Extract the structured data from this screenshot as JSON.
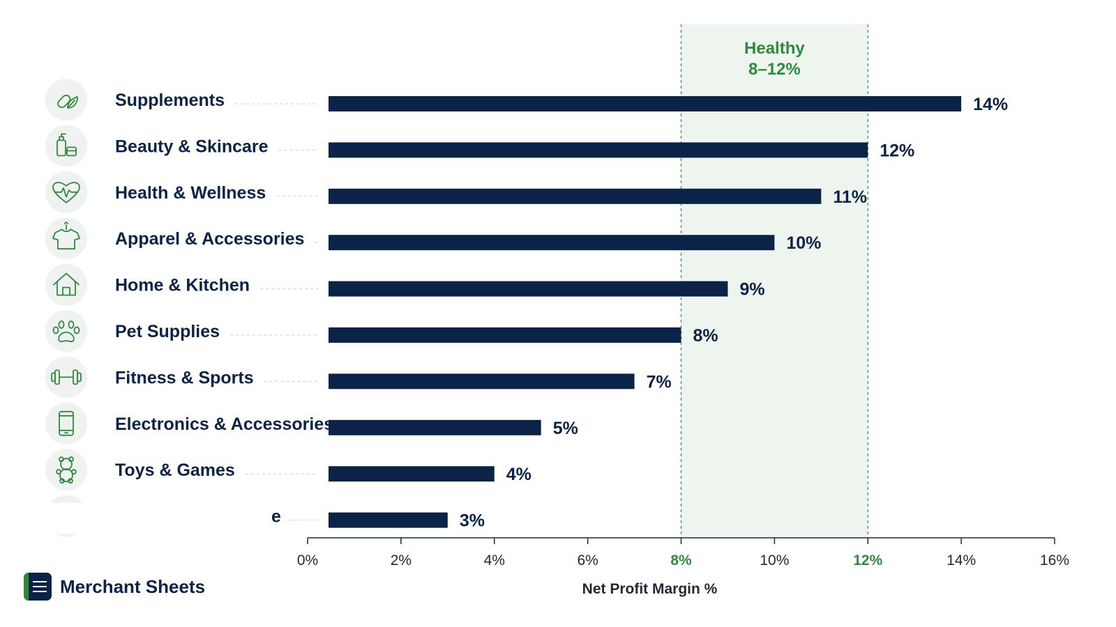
{
  "chart_data": {
    "type": "bar",
    "orientation": "horizontal",
    "categories": [
      "Supplements",
      "Beauty & Skincare",
      "Health & Wellness",
      "Apparel & Accessories",
      "Home & Kitchen",
      "Pet Supplies",
      "Fitness & Sports",
      "Electronics & Accessories",
      "Toys & Games",
      "e"
    ],
    "values": [
      14,
      12,
      11,
      10,
      9,
      8,
      7,
      5,
      4,
      3
    ],
    "value_labels": [
      "14%",
      "12%",
      "11%",
      "10%",
      "9%",
      "8%",
      "7%",
      "5%",
      "4%",
      "3%"
    ],
    "icons": [
      "supplements-icon",
      "beauty-skincare-icon",
      "health-wellness-icon",
      "apparel-icon",
      "home-kitchen-icon",
      "pet-supplies-icon",
      "fitness-sports-icon",
      "electronics-icon",
      "toys-games-icon",
      ""
    ],
    "xlabel": "Net Profit Margin %",
    "xlim": [
      0,
      16
    ],
    "xticks": [
      "0%",
      "2%",
      "4%",
      "6%",
      "8%",
      "10%",
      "12%",
      "14%",
      "16%"
    ],
    "highlighted_ticks": [
      "8%",
      "12%"
    ],
    "band": {
      "from": 8,
      "to": 12,
      "label_line1": "Healthy",
      "label_line2": "8–12%"
    },
    "grid": false,
    "legend": "none",
    "colors": {
      "bar": "#0c2348",
      "band_fill": "#eef5ef",
      "accent": "#2e8b3e",
      "icon_bg": "#f0f1f1"
    }
  },
  "brand": {
    "name": "Merchant Sheets"
  }
}
